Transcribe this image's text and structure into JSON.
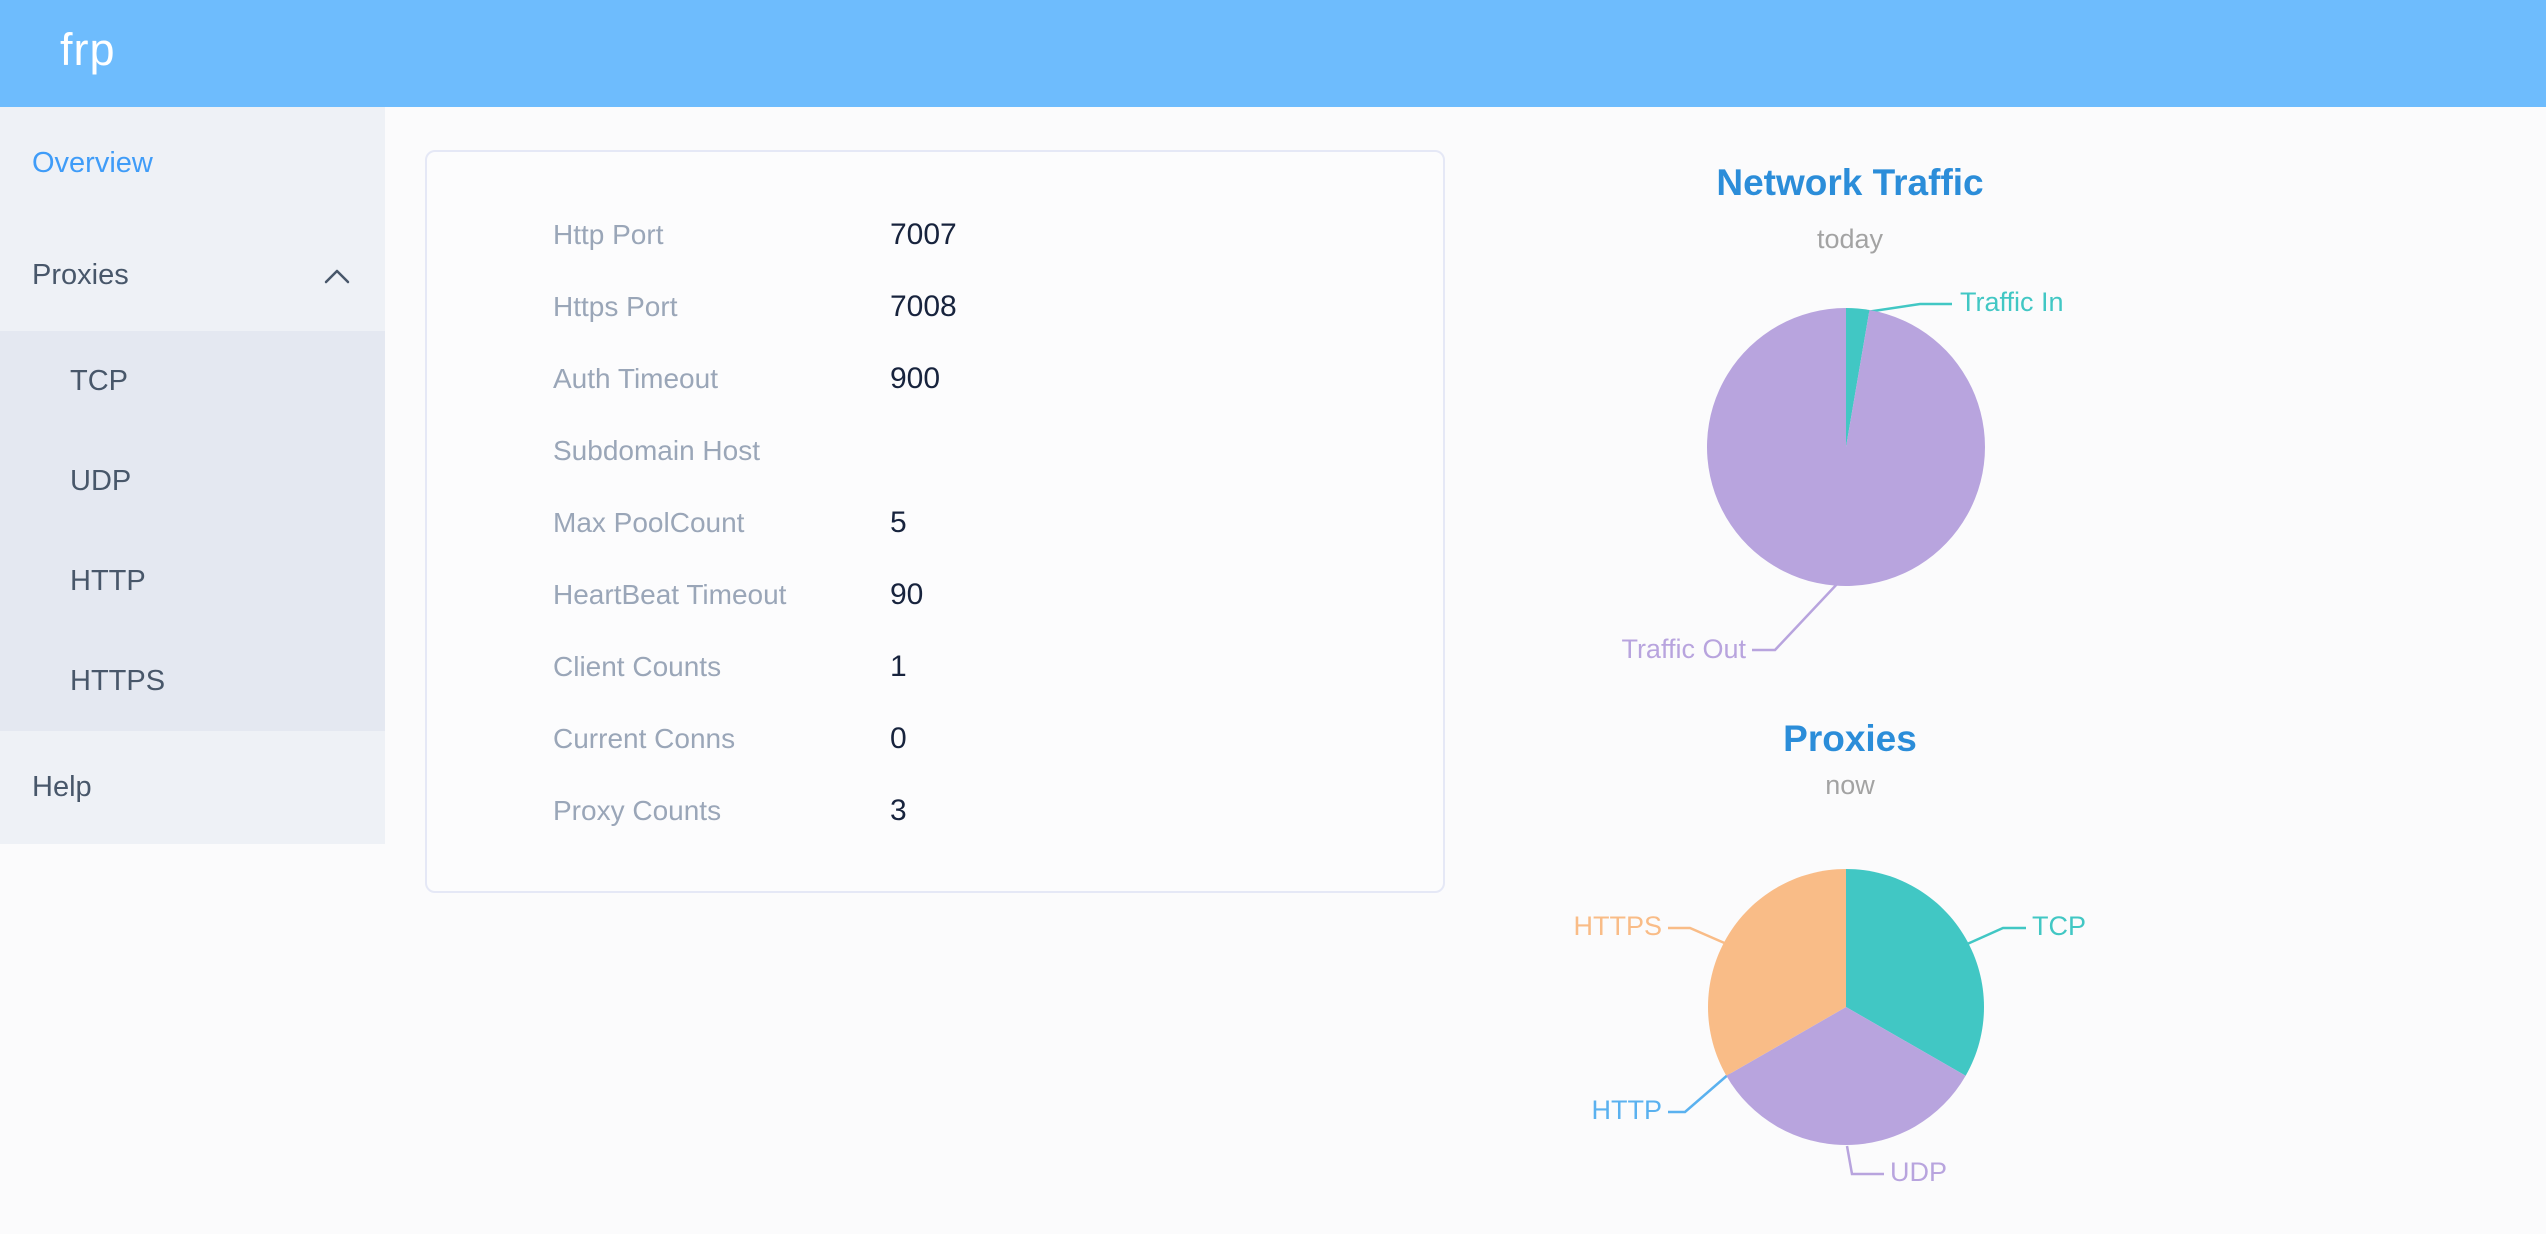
{
  "header": {
    "logo": "frp"
  },
  "sidebar": {
    "overview": "Overview",
    "proxies": "Proxies",
    "proxies_children": [
      "TCP",
      "UDP",
      "HTTP",
      "HTTPS"
    ],
    "help": "Help"
  },
  "overview_card": {
    "rows": [
      {
        "label": "Http Port",
        "value": "7007"
      },
      {
        "label": "Https Port",
        "value": "7008"
      },
      {
        "label": "Auth Timeout",
        "value": "900"
      },
      {
        "label": "Subdomain Host",
        "value": ""
      },
      {
        "label": "Max PoolCount",
        "value": "5"
      },
      {
        "label": "HeartBeat Timeout",
        "value": "90"
      },
      {
        "label": "Client Counts",
        "value": "1"
      },
      {
        "label": "Current Conns",
        "value": "0"
      },
      {
        "label": "Proxy Counts",
        "value": "3"
      }
    ]
  },
  "chart_data": [
    {
      "type": "pie",
      "title": "Network Traffic",
      "subtitle": "today",
      "legend": false,
      "labels": "callout",
      "slices": [
        {
          "name": "Traffic In",
          "percent": 2.7,
          "color": "#41c7c4"
        },
        {
          "name": "Traffic Out",
          "percent": 97.3,
          "color": "#b8a4de"
        }
      ]
    },
    {
      "type": "pie",
      "title": "Proxies",
      "subtitle": "now",
      "legend": false,
      "labels": "callout",
      "slices": [
        {
          "name": "TCP",
          "percent": 33.3,
          "color": "#41c7c4"
        },
        {
          "name": "UDP",
          "percent": 33.4,
          "color": "#b8a4de"
        },
        {
          "name": "HTTP",
          "percent": 0,
          "color": "#5ab1ef"
        },
        {
          "name": "HTTPS",
          "percent": 33.3,
          "color": "#f9bc87"
        }
      ]
    }
  ],
  "colors": {
    "header_bg": "#6ebcfd",
    "sidebar_active": "#3f9cf8",
    "chart_title": "#2b8dd9",
    "chart_subtitle": "#a3a3a3",
    "table_label": "#9aa6b8",
    "table_value": "#17233d"
  }
}
